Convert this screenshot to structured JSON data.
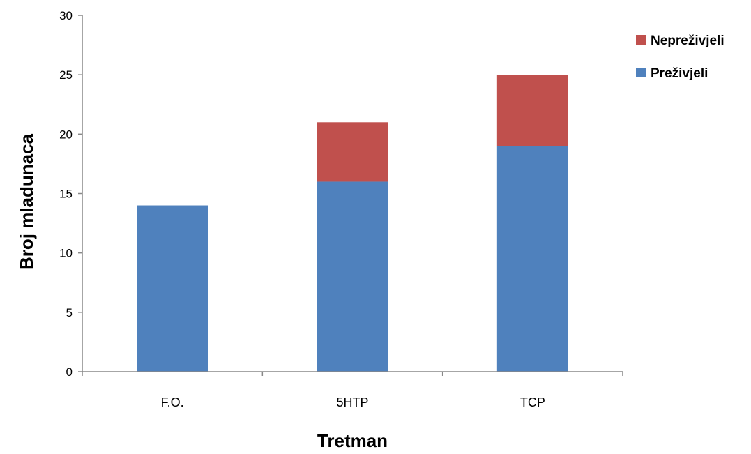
{
  "chart_data": {
    "type": "bar",
    "stacked": true,
    "categories": [
      "F.O.",
      "5HTP",
      "TCP"
    ],
    "series": [
      {
        "name": "Preživjeli",
        "values": [
          14,
          16,
          19
        ],
        "color": "#4f81bd"
      },
      {
        "name": "Nepreživjeli",
        "values": [
          0,
          5,
          6
        ],
        "color": "#c0504d"
      }
    ],
    "xlabel": "Tretman",
    "ylabel": "Broj mladunaca",
    "ylim": [
      0,
      30
    ],
    "yticks": [
      0,
      5,
      10,
      15,
      20,
      25,
      30
    ],
    "grid": false,
    "legend": {
      "position": "top-right",
      "entries": [
        "Nepreživjeli",
        "Preživjeli"
      ]
    }
  }
}
